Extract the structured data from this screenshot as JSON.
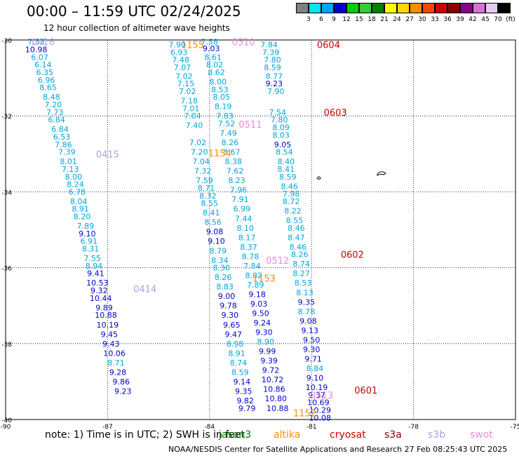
{
  "title": "00:00 – 11:59 UTC 02/24/2025",
  "subtitle": "12 hour collection of altimeter wave heights",
  "note": "note: 1) Time is in UTC; 2) SWH is in feet",
  "credit": "NOAA/NESDIS Center for Satellite Applications and Research   27 Feb 08:25:43 UTC 2025",
  "satellites": [
    {
      "name": "jason3",
      "color": "#008000"
    },
    {
      "name": "altika",
      "color": "#ff8c00"
    },
    {
      "name": "cryosat",
      "color": "#cc0000"
    },
    {
      "name": "s3a",
      "color": "#800000"
    },
    {
      "name": "s3b",
      "color": "#b0a0e0"
    },
    {
      "name": "swot",
      "color": "#ee88dd"
    }
  ],
  "colorbar": {
    "labels": [
      "3",
      "6",
      "9",
      "12",
      "15",
      "18",
      "21",
      "24",
      "27",
      "30",
      "33",
      "36",
      "39",
      "42",
      "45",
      "70",
      "(ft)"
    ],
    "colors": [
      "#808080",
      "#00e5ee",
      "#00a5ff",
      "#0000cd",
      "#00cc00",
      "#32cd32",
      "#008000",
      "#ffff00",
      "#ffd700",
      "#ff8c00",
      "#ff4500",
      "#cc0000",
      "#8b0000",
      "#8b008b",
      "#da70d6",
      "#e6c8f0",
      "#000000"
    ]
  },
  "chart_data": {
    "type": "scatter",
    "title": "00:00 – 11:59 UTC 02/24/2025",
    "xlim": [
      -90,
      -75
    ],
    "ylim": [
      -40,
      -30
    ],
    "x_ticks": [
      "-90",
      "-87",
      "-84",
      "-81",
      "-78",
      "-75"
    ],
    "y_ticks": [
      "-30",
      "-32",
      "-34",
      "-36",
      "-38",
      "-40"
    ],
    "grid": true,
    "time_labels": [
      {
        "text": "0416",
        "x": -88.9,
        "y": -30.05,
        "color": "#b0a0e0"
      },
      {
        "text": "0415",
        "x": -87.0,
        "y": -33.0,
        "color": "#b0a0e0"
      },
      {
        "text": "0414",
        "x": -85.9,
        "y": -36.55,
        "color": "#b0a0e0"
      },
      {
        "text": "1155",
        "x": -84.5,
        "y": -30.12,
        "color": "#ff8c00"
      },
      {
        "text": "0510",
        "x": -83.0,
        "y": -30.05,
        "color": "#ee88dd"
      },
      {
        "text": "0511",
        "x": -82.8,
        "y": -32.22,
        "color": "#ee88dd"
      },
      {
        "text": "1154",
        "x": -83.7,
        "y": -32.98,
        "color": "#ff8c00"
      },
      {
        "text": "0512",
        "x": -82.0,
        "y": -35.8,
        "color": "#ee88dd"
      },
      {
        "text": "1153",
        "x": -82.4,
        "y": -36.28,
        "color": "#ff8c00"
      },
      {
        "text": "0513",
        "x": -80.7,
        "y": -39.35,
        "color": "#ee88dd"
      },
      {
        "text": "1152",
        "x": -81.2,
        "y": -39.82,
        "color": "#ff8c00"
      },
      {
        "text": "0604",
        "x": -80.5,
        "y": -30.12,
        "color": "#cc0000"
      },
      {
        "text": "0603",
        "x": -80.3,
        "y": -31.9,
        "color": "#cc0000"
      },
      {
        "text": "0602",
        "x": -79.8,
        "y": -35.65,
        "color": "#cc0000"
      },
      {
        "text": "0601",
        "x": -79.4,
        "y": -39.22,
        "color": "#cc0000"
      }
    ],
    "series": [
      {
        "values": [
          {
            "x": -89.1,
            "y": -30.05,
            "v": 7.53
          },
          {
            "x": -89.1,
            "y": -30.25,
            "v": 10.98
          },
          {
            "x": -89.0,
            "y": -30.45,
            "v": 6.07
          },
          {
            "x": -88.9,
            "y": -30.65,
            "v": 6.14
          },
          {
            "x": -88.85,
            "y": -30.85,
            "v": 6.35
          },
          {
            "x": -88.8,
            "y": -31.05,
            "v": 6.96
          },
          {
            "x": -88.75,
            "y": -31.25,
            "v": 8.65
          },
          {
            "x": -88.65,
            "y": -31.5,
            "v": 8.48
          },
          {
            "x": -88.6,
            "y": -31.7,
            "v": 7.2
          },
          {
            "x": -88.55,
            "y": -31.9,
            "v": 7.73
          },
          {
            "x": -88.5,
            "y": -32.1,
            "v": 6.84
          },
          {
            "x": -88.4,
            "y": -32.35,
            "v": 6.84
          },
          {
            "x": -88.35,
            "y": -32.55,
            "v": 6.53
          },
          {
            "x": -88.3,
            "y": -32.75,
            "v": 7.86
          },
          {
            "x": -88.2,
            "y": -32.95,
            "v": 7.39
          },
          {
            "x": -88.15,
            "y": -33.2,
            "v": 8.01
          },
          {
            "x": -88.1,
            "y": -33.4,
            "v": 7.13
          },
          {
            "x": -88.0,
            "y": -33.6,
            "v": 8.0
          },
          {
            "x": -87.95,
            "y": -33.8,
            "v": 8.24
          },
          {
            "x": -87.9,
            "y": -34.0,
            "v": 6.78
          },
          {
            "x": -87.85,
            "y": -34.25,
            "v": 8.04
          },
          {
            "x": -87.8,
            "y": -34.45,
            "v": 8.91
          },
          {
            "x": -87.75,
            "y": -34.65,
            "v": 8.2
          },
          {
            "x": -87.65,
            "y": -34.9,
            "v": 7.89
          },
          {
            "x": -87.6,
            "y": -35.1,
            "v": 9.1
          },
          {
            "x": -87.55,
            "y": -35.3,
            "v": 6.91
          },
          {
            "x": -87.5,
            "y": -35.5,
            "v": 8.31
          },
          {
            "x": -87.45,
            "y": -35.75,
            "v": 7.55
          },
          {
            "x": -87.4,
            "y": -35.95,
            "v": 8.94
          },
          {
            "x": -87.35,
            "y": -36.15,
            "v": 9.41
          },
          {
            "x": -87.3,
            "y": -36.4,
            "v": 10.53
          },
          {
            "x": -87.25,
            "y": -36.6,
            "v": 9.32
          },
          {
            "x": -87.2,
            "y": -36.8,
            "v": 10.44
          },
          {
            "x": -87.1,
            "y": -37.05,
            "v": 9.89
          },
          {
            "x": -87.05,
            "y": -37.25,
            "v": 10.88
          },
          {
            "x": -87.0,
            "y": -37.5,
            "v": 10.19
          },
          {
            "x": -86.95,
            "y": -37.75,
            "v": 9.45
          },
          {
            "x": -86.9,
            "y": -38.0,
            "v": 9.43
          },
          {
            "x": -86.8,
            "y": -38.25,
            "v": 10.06
          },
          {
            "x": -86.75,
            "y": -38.5,
            "v": 8.71
          },
          {
            "x": -86.7,
            "y": -38.75,
            "v": 9.28
          },
          {
            "x": -86.6,
            "y": -39.0,
            "v": 9.86
          },
          {
            "x": -86.55,
            "y": -39.25,
            "v": 9.23
          }
        ]
      },
      {
        "values": [
          {
            "x": -84.95,
            "y": -30.12,
            "v": 7.9
          },
          {
            "x": -84.9,
            "y": -30.32,
            "v": 6.93
          },
          {
            "x": -84.85,
            "y": -30.52,
            "v": 7.48
          },
          {
            "x": -84.8,
            "y": -30.72,
            "v": 7.07
          },
          {
            "x": -84.75,
            "y": -30.95,
            "v": 7.02
          },
          {
            "x": -84.7,
            "y": -31.15,
            "v": 7.15
          },
          {
            "x": -84.65,
            "y": -31.35,
            "v": 7.02
          },
          {
            "x": -84.6,
            "y": -31.6,
            "v": 7.18
          },
          {
            "x": -84.55,
            "y": -31.8,
            "v": 7.01
          },
          {
            "x": -84.5,
            "y": -32.0,
            "v": 7.04
          },
          {
            "x": -84.45,
            "y": -32.25,
            "v": 7.4
          },
          {
            "x": -84.35,
            "y": -32.7,
            "v": 7.02
          },
          {
            "x": -84.3,
            "y": -32.95,
            "v": 7.2
          },
          {
            "x": -84.25,
            "y": -33.2,
            "v": 7.04
          },
          {
            "x": -84.2,
            "y": -33.45,
            "v": 7.32
          },
          {
            "x": -84.15,
            "y": -33.7,
            "v": 7.59
          },
          {
            "x": -84.1,
            "y": -33.9,
            "v": 8.71
          },
          {
            "x": -84.05,
            "y": -34.1,
            "v": 8.32
          },
          {
            "x": -84.0,
            "y": -34.3,
            "v": 8.55
          },
          {
            "x": -83.95,
            "y": -34.55,
            "v": 8.41
          },
          {
            "x": -83.9,
            "y": -34.8,
            "v": 8.56
          },
          {
            "x": -83.85,
            "y": -35.05,
            "v": 9.08
          },
          {
            "x": -83.8,
            "y": -35.3,
            "v": 9.1
          },
          {
            "x": -83.75,
            "y": -35.55,
            "v": 8.79
          },
          {
            "x": -83.7,
            "y": -35.8,
            "v": 8.34
          },
          {
            "x": -83.65,
            "y": -36.0,
            "v": 8.3
          },
          {
            "x": -83.6,
            "y": -36.25,
            "v": 8.26
          },
          {
            "x": -83.55,
            "y": -36.5,
            "v": 8.83
          },
          {
            "x": -83.5,
            "y": -36.75,
            "v": 9.0
          },
          {
            "x": -83.45,
            "y": -37.0,
            "v": 9.78
          },
          {
            "x": -83.4,
            "y": -37.25,
            "v": 9.3
          },
          {
            "x": -83.35,
            "y": -37.5,
            "v": 9.65
          },
          {
            "x": -83.3,
            "y": -37.75,
            "v": 9.47
          },
          {
            "x": -83.25,
            "y": -38.0,
            "v": 8.98
          },
          {
            "x": -83.2,
            "y": -38.25,
            "v": 8.91
          },
          {
            "x": -83.15,
            "y": -38.5,
            "v": 8.74
          },
          {
            "x": -83.1,
            "y": -38.75,
            "v": 8.59
          },
          {
            "x": -83.05,
            "y": -39.0,
            "v": 9.14
          },
          {
            "x": -83.0,
            "y": -39.25,
            "v": 9.35
          },
          {
            "x": -82.95,
            "y": -39.5,
            "v": 9.82
          },
          {
            "x": -82.9,
            "y": -39.7,
            "v": 9.79
          }
        ]
      },
      {
        "values": [
          {
            "x": -84.0,
            "y": -30.05,
            "v": 7.58
          },
          {
            "x": -83.95,
            "y": -30.22,
            "v": 9.03
          },
          {
            "x": -83.9,
            "y": -30.45,
            "v": 8.61
          },
          {
            "x": -83.85,
            "y": -30.65,
            "v": 8.02
          },
          {
            "x": -83.8,
            "y": -30.85,
            "v": 8.62
          },
          {
            "x": -83.75,
            "y": -31.1,
            "v": 8.0
          },
          {
            "x": -83.7,
            "y": -31.3,
            "v": 8.53
          },
          {
            "x": -83.65,
            "y": -31.5,
            "v": 8.05
          },
          {
            "x": -83.6,
            "y": -31.75,
            "v": 8.19
          },
          {
            "x": -83.55,
            "y": -32.0,
            "v": 7.83
          },
          {
            "x": -83.5,
            "y": -32.2,
            "v": 7.52
          },
          {
            "x": -83.45,
            "y": -32.45,
            "v": 7.49
          },
          {
            "x": -83.4,
            "y": -32.7,
            "v": 8.26
          },
          {
            "x": -83.35,
            "y": -32.95,
            "v": 8.67
          },
          {
            "x": -83.3,
            "y": -33.2,
            "v": 8.38
          },
          {
            "x": -83.25,
            "y": -33.45,
            "v": 7.62
          },
          {
            "x": -83.2,
            "y": -33.7,
            "v": 8.23
          },
          {
            "x": -83.15,
            "y": -33.95,
            "v": 7.96
          },
          {
            "x": -83.1,
            "y": -34.2,
            "v": 7.91
          },
          {
            "x": -83.05,
            "y": -34.45,
            "v": 6.99
          },
          {
            "x": -83.0,
            "y": -34.7,
            "v": 7.44
          },
          {
            "x": -82.95,
            "y": -34.95,
            "v": 8.1
          },
          {
            "x": -82.9,
            "y": -35.2,
            "v": 8.17
          },
          {
            "x": -82.85,
            "y": -35.45,
            "v": 8.37
          },
          {
            "x": -82.8,
            "y": -35.7,
            "v": 8.78
          },
          {
            "x": -82.75,
            "y": -35.95,
            "v": 7.84
          },
          {
            "x": -82.7,
            "y": -36.2,
            "v": 8.82
          },
          {
            "x": -82.65,
            "y": -36.45,
            "v": 7.89
          },
          {
            "x": -82.6,
            "y": -36.7,
            "v": 9.18
          },
          {
            "x": -82.55,
            "y": -36.95,
            "v": 9.03
          },
          {
            "x": -82.5,
            "y": -37.2,
            "v": 9.5
          },
          {
            "x": -82.45,
            "y": -37.45,
            "v": 9.24
          },
          {
            "x": -82.4,
            "y": -37.7,
            "v": 9.3
          },
          {
            "x": -82.35,
            "y": -37.95,
            "v": 8.9
          },
          {
            "x": -82.3,
            "y": -38.2,
            "v": 9.99
          },
          {
            "x": -82.25,
            "y": -38.45,
            "v": 9.39
          },
          {
            "x": -82.2,
            "y": -38.7,
            "v": 9.72
          },
          {
            "x": -82.15,
            "y": -38.95,
            "v": 10.72
          },
          {
            "x": -82.1,
            "y": -39.2,
            "v": 10.86
          },
          {
            "x": -82.05,
            "y": -39.45,
            "v": 10.8
          },
          {
            "x": -82.0,
            "y": -39.7,
            "v": 10.88
          }
        ]
      },
      {
        "values": [
          {
            "x": -82.25,
            "y": -30.12,
            "v": 7.84
          },
          {
            "x": -82.2,
            "y": -30.32,
            "v": 7.39
          },
          {
            "x": -82.15,
            "y": -30.52,
            "v": 7.8
          },
          {
            "x": -82.15,
            "y": -30.72,
            "v": 8.59
          },
          {
            "x": -82.1,
            "y": -30.95,
            "v": 8.77
          },
          {
            "x": -82.1,
            "y": -31.15,
            "v": 9.23
          },
          {
            "x": -82.05,
            "y": -31.35,
            "v": 7.9
          },
          {
            "x": -82.0,
            "y": -31.9,
            "v": 7.54
          },
          {
            "x": -81.95,
            "y": -32.1,
            "v": 7.8
          },
          {
            "x": -81.9,
            "y": -32.3,
            "v": 8.09
          },
          {
            "x": -81.9,
            "y": -32.5,
            "v": 8.03
          },
          {
            "x": -81.85,
            "y": -32.75,
            "v": 9.05
          },
          {
            "x": -81.8,
            "y": -32.95,
            "v": 8.54
          },
          {
            "x": -81.75,
            "y": -33.2,
            "v": 8.4
          },
          {
            "x": -81.75,
            "y": -33.4,
            "v": 8.41
          },
          {
            "x": -81.7,
            "y": -33.6,
            "v": 8.59
          },
          {
            "x": -81.65,
            "y": -33.85,
            "v": 8.46
          },
          {
            "x": -81.6,
            "y": -34.05,
            "v": 7.98
          },
          {
            "x": -81.6,
            "y": -34.25,
            "v": 8.72
          },
          {
            "x": -81.55,
            "y": -34.5,
            "v": 8.22
          },
          {
            "x": -81.5,
            "y": -34.75,
            "v": 8.55
          },
          {
            "x": -81.45,
            "y": -34.95,
            "v": 8.46
          },
          {
            "x": -81.45,
            "y": -35.2,
            "v": 8.47
          },
          {
            "x": -81.4,
            "y": -35.45,
            "v": 8.46
          },
          {
            "x": -81.35,
            "y": -35.65,
            "v": 8.26
          },
          {
            "x": -81.3,
            "y": -35.9,
            "v": 8.74
          },
          {
            "x": -81.3,
            "y": -36.15,
            "v": 8.27
          },
          {
            "x": -81.25,
            "y": -36.4,
            "v": 8.53
          },
          {
            "x": -81.2,
            "y": -36.65,
            "v": 8.13
          },
          {
            "x": -81.15,
            "y": -36.9,
            "v": 9.35
          },
          {
            "x": -81.15,
            "y": -37.15,
            "v": 8.78
          },
          {
            "x": -81.1,
            "y": -37.4,
            "v": 9.08
          },
          {
            "x": -81.05,
            "y": -37.65,
            "v": 9.13
          },
          {
            "x": -81.0,
            "y": -37.9,
            "v": 9.5
          },
          {
            "x": -81.0,
            "y": -38.15,
            "v": 9.3
          },
          {
            "x": -80.95,
            "y": -38.4,
            "v": 9.71
          },
          {
            "x": -80.9,
            "y": -38.65,
            "v": 8.84
          },
          {
            "x": -80.9,
            "y": -38.9,
            "v": 9.1
          },
          {
            "x": -80.85,
            "y": -39.15,
            "v": 10.19
          },
          {
            "x": -80.85,
            "y": -39.35,
            "v": 9.37
          },
          {
            "x": -80.8,
            "y": -39.55,
            "v": 10.69
          },
          {
            "x": -80.75,
            "y": -39.75,
            "v": 10.29
          },
          {
            "x": -80.75,
            "y": -39.95,
            "v": 10.08
          }
        ]
      }
    ]
  }
}
